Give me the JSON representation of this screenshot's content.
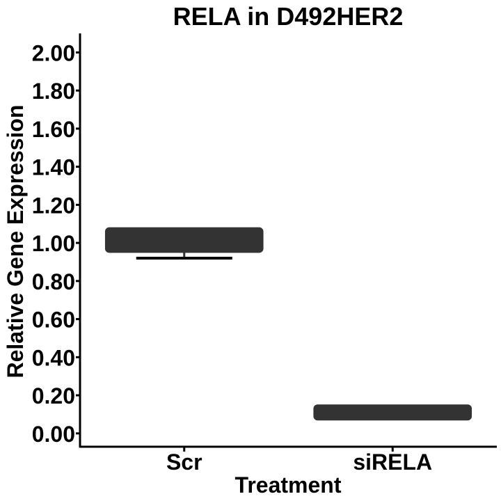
{
  "chart_data": {
    "type": "box",
    "title": "RELA in D492HER2",
    "xlabel": "Treatment",
    "ylabel": "Relative Gene Expression",
    "categories": [
      "Scr",
      "siRELA"
    ],
    "boxes": [
      {
        "category": "Scr",
        "min": 0.92,
        "q1": 0.97,
        "median": 0.99,
        "q3": 1.06,
        "max": 1.07
      },
      {
        "category": "siRELA",
        "min": 0.09,
        "q1": 0.09,
        "median": 0.105,
        "q3": 0.13,
        "max": 0.14
      }
    ],
    "ylim": [
      -0.07,
      2.1
    ],
    "yticks": [
      0.0,
      0.2,
      0.4,
      0.6,
      0.8,
      1.0,
      1.2,
      1.4,
      1.6,
      1.8,
      2.0
    ],
    "ytick_labels": [
      "0.00",
      "0.20",
      "0.40",
      "0.60",
      "0.80",
      "1.00",
      "1.20",
      "1.40",
      "1.60",
      "1.80",
      "2.00"
    ],
    "grid": false,
    "colors": {
      "box": "#333333",
      "axis": "#000000",
      "text": "#000000"
    }
  }
}
